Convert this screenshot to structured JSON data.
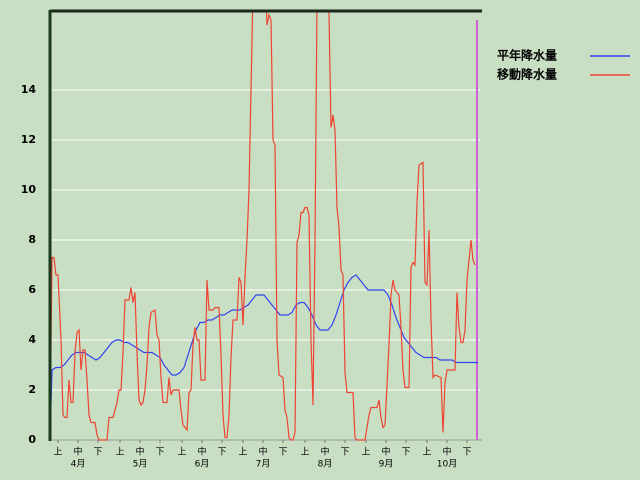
{
  "chart_data": {
    "type": "line",
    "xlim": [
      0,
      214
    ],
    "ylim": [
      0,
      17.2
    ],
    "yticks": [
      0,
      2,
      4,
      6,
      8,
      10,
      12,
      14
    ],
    "grid": true,
    "legend": "upper right",
    "xticks": [
      {
        "value": 4,
        "label": "上"
      },
      {
        "value": 14,
        "label": "中"
      },
      {
        "value": 24,
        "label": "下"
      },
      {
        "value": 35,
        "label": "上"
      },
      {
        "value": 45,
        "label": "中"
      },
      {
        "value": 55,
        "label": "下"
      },
      {
        "value": 66,
        "label": "上"
      },
      {
        "value": 76,
        "label": "中"
      },
      {
        "value": 86,
        "label": "下"
      },
      {
        "value": 96.5,
        "label": "上"
      },
      {
        "value": 106.5,
        "label": "中"
      },
      {
        "value": 116.5,
        "label": "下"
      },
      {
        "value": 127.5,
        "label": "上"
      },
      {
        "value": 137.5,
        "label": "中"
      },
      {
        "value": 147.5,
        "label": "下"
      },
      {
        "value": 158,
        "label": "上"
      },
      {
        "value": 168,
        "label": "中"
      },
      {
        "value": 178,
        "label": "下"
      },
      {
        "value": 188.5,
        "label": "上"
      },
      {
        "value": 198.5,
        "label": "中"
      },
      {
        "value": 208.5,
        "label": "下"
      }
    ],
    "month_labels": [
      {
        "value": 14,
        "label": "4月"
      },
      {
        "value": 45,
        "label": "5月"
      },
      {
        "value": 76,
        "label": "6月"
      },
      {
        "value": 106.5,
        "label": "7月"
      },
      {
        "value": 137.5,
        "label": "8月"
      },
      {
        "value": 168,
        "label": "9月"
      },
      {
        "value": 198.5,
        "label": "10月"
      }
    ],
    "series": [
      {
        "name": "平年降水量",
        "color": "#3344ee",
        "x": [
          0,
          1,
          3,
          5,
          7,
          9,
          11,
          13,
          15,
          17,
          19,
          21,
          23,
          25,
          27,
          29,
          31,
          33,
          35,
          37,
          39,
          41,
          43,
          45,
          47,
          49,
          51,
          53,
          55,
          57,
          59,
          61,
          63,
          65,
          67,
          69,
          71,
          73,
          75,
          77,
          79,
          81,
          83,
          85,
          87,
          89,
          91,
          93,
          95,
          97,
          99,
          101,
          103,
          105,
          107,
          109,
          111,
          113,
          115,
          117,
          119,
          121,
          123,
          125,
          127,
          129,
          131,
          133,
          135,
          137,
          139,
          141,
          143,
          145,
          147,
          149,
          151,
          153,
          155,
          157,
          159,
          161,
          163,
          165,
          167,
          169,
          171,
          173,
          175,
          177,
          179,
          181,
          183,
          185,
          187,
          189,
          191,
          193,
          195,
          197,
          199,
          201,
          203,
          205,
          207,
          209,
          211,
          213,
          214
        ],
        "values": [
          0,
          2.8,
          2.9,
          2.9,
          3.0,
          3.2,
          3.4,
          3.5,
          3.5,
          3.5,
          3.4,
          3.3,
          3.2,
          3.3,
          3.5,
          3.7,
          3.9,
          4.0,
          4.0,
          3.9,
          3.9,
          3.8,
          3.7,
          3.6,
          3.5,
          3.5,
          3.5,
          3.4,
          3.3,
          3.0,
          2.8,
          2.6,
          2.6,
          2.7,
          2.9,
          3.4,
          3.9,
          4.4,
          4.7,
          4.7,
          4.8,
          4.8,
          4.9,
          5.0,
          5.0,
          5.1,
          5.2,
          5.2,
          5.2,
          5.3,
          5.4,
          5.6,
          5.8,
          5.8,
          5.8,
          5.6,
          5.4,
          5.2,
          5.0,
          5.0,
          5.0,
          5.1,
          5.4,
          5.5,
          5.5,
          5.3,
          5.0,
          4.6,
          4.4,
          4.4,
          4.4,
          4.6,
          5.0,
          5.5,
          6.0,
          6.3,
          6.5,
          6.6,
          6.4,
          6.2,
          6.0,
          6.0,
          6.0,
          6.0,
          6.0,
          5.8,
          5.4,
          4.9,
          4.5,
          4.1,
          3.9,
          3.7,
          3.5,
          3.4,
          3.3,
          3.3,
          3.3,
          3.3,
          3.2,
          3.2,
          3.2,
          3.2,
          3.1,
          3.1,
          3.1,
          3.1,
          3.1,
          3.1,
          3.1
        ]
      },
      {
        "name": "移動降水量",
        "color": "#ee4433",
        "x": [
          0,
          1,
          2,
          3,
          4,
          5.5,
          6.5,
          7.5,
          8.5,
          9.5,
          10.5,
          11.5,
          12.5,
          13.5,
          14.5,
          15.5,
          16.5,
          17.5,
          18.5,
          19.5,
          20.5,
          22.5,
          23.5,
          24.5,
          28.5,
          29.5,
          31.5,
          33.5,
          34.5,
          35.5,
          36.5,
          37.5,
          39.5,
          40.5,
          41.5,
          42.5,
          43.5,
          44.5,
          45.5,
          46.5,
          47.5,
          48.5,
          49.5,
          50.5,
          52.5,
          53.5,
          54.5,
          55.5,
          56.5,
          58.5,
          59.5,
          60.5,
          61.5,
          64.5,
          65.5,
          66.5,
          68.5,
          69.5,
          70.5,
          71.5,
          72.5,
          73.5,
          74.5,
          75.5,
          77.5,
          78.5,
          79.5,
          81.5,
          82.5,
          84.5,
          85.5,
          86.5,
          87.5,
          88.5,
          89.5,
          90.5,
          91.5,
          93.5,
          94.5,
          95.5,
          96.5,
          97.5,
          98.5,
          99.5,
          100.5,
          101.5,
          102.5,
          106.5,
          108.5,
          109.5,
          110.5,
          111.5,
          112.5,
          113.5,
          114.5,
          116.5,
          117.5,
          118.5,
          119.5,
          120.5,
          121.5,
          122.5,
          123.5,
          124.5,
          125.5,
          126.5,
          127.5,
          128.5,
          129.5,
          130.5,
          131.5,
          132.5,
          133.5,
          134.5,
          137.5,
          139.5,
          140.5,
          141.5,
          142.5,
          143.5,
          144.5,
          145.5,
          146.5,
          147.5,
          148.5,
          151.5,
          152.5,
          153.5,
          157.5,
          158.5,
          159.5,
          160.5,
          163.5,
          164.5,
          165.5,
          166.5,
          167.5,
          168.5,
          169.5,
          170.5,
          171.5,
          172.5,
          173.5,
          174.5,
          175.5,
          176.5,
          177.5,
          179.5,
          180.5,
          181.5,
          182.5,
          183.5,
          184.5,
          186.5,
          187.5,
          188.5,
          189.5,
          190.5,
          191.5,
          192.5,
          195.5,
          196.5,
          197.5,
          198.5,
          202.5,
          203.5,
          204.5,
          205.5,
          206.5,
          207.5,
          208.5,
          209.5,
          210.5,
          211.5,
          212.5
        ],
        "values": [
          0,
          7.3,
          7.3,
          6.6,
          6.6,
          4,
          1,
          0.9,
          0.9,
          2.4,
          1.5,
          1.5,
          3.5,
          4.3,
          4.4,
          2.8,
          3.6,
          3.6,
          2.4,
          1,
          0.7,
          0.7,
          0.2,
          0,
          0,
          0.9,
          0.9,
          1.5,
          2,
          2,
          3.5,
          5.6,
          5.6,
          6.1,
          5.5,
          5.9,
          3.5,
          1.6,
          1.4,
          1.5,
          2,
          3,
          4.5,
          5.1,
          5.2,
          4.2,
          4,
          2.5,
          1.5,
          1.5,
          2.5,
          1.8,
          2,
          2,
          1.2,
          0.6,
          0.4,
          1.9,
          2,
          3.8,
          4.5,
          4,
          4,
          2.4,
          2.4,
          6.4,
          5.2,
          5.2,
          5.3,
          5.3,
          3.4,
          1,
          0.1,
          0.1,
          1,
          3.3,
          4.8,
          4.8,
          6.5,
          6.3,
          4.6,
          6.5,
          8,
          10,
          14,
          18,
          21,
          21,
          16.6,
          17,
          16.8,
          12,
          11.8,
          4,
          2.6,
          2.5,
          1.2,
          0.9,
          0.1,
          0,
          0,
          0.3,
          7.9,
          8.2,
          9.1,
          9.1,
          9.3,
          9.3,
          9,
          4,
          1.4,
          8,
          17.5,
          21,
          21,
          17,
          12.5,
          13,
          12.4,
          9.3,
          8.5,
          6.8,
          6.6,
          2.7,
          1.9,
          1.9,
          0.1,
          0,
          0,
          0.5,
          1,
          1.3,
          1.3,
          1.6,
          0.9,
          0.5,
          0.6,
          2.2,
          3.8,
          5.8,
          6.4,
          6,
          5.9,
          5.8,
          4.5,
          2.8,
          2.1,
          2.1,
          6.9,
          7.1,
          7,
          9.5,
          11,
          11.1,
          6.3,
          6.2,
          8.4,
          4.8,
          2.5,
          2.6,
          2.5,
          0.3,
          2.3,
          2.8,
          2.8,
          5.9,
          4.5,
          3.9,
          3.9,
          4.4,
          6.4,
          7.2,
          8,
          7.2,
          7
        ]
      }
    ]
  }
}
